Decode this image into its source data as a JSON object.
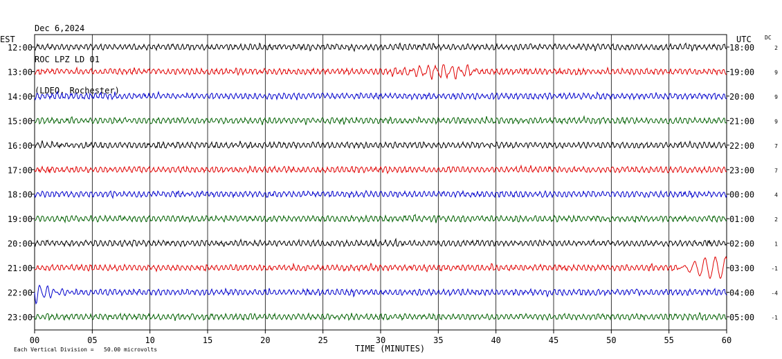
{
  "header": {
    "date": "Dec 6,2024",
    "station": "ROC LPZ LD 01",
    "location": "(LDEO, Rochester)"
  },
  "left_axis_label": "EST",
  "right_axis_label": "UTC",
  "dc_label": "DC",
  "footer_note": "Each Vertical Division =   50.00 microvolts",
  "chart_data": {
    "type": "line",
    "xlabel": "TIME (MINUTES)",
    "x_ticks": [
      "00",
      "05",
      "10",
      "15",
      "20",
      "25",
      "30",
      "35",
      "40",
      "45",
      "50",
      "55",
      "60"
    ],
    "xlim": [
      0,
      60
    ],
    "grid": true,
    "trace_colors": [
      "#000000",
      "#e00000",
      "#0000cc",
      "#006000"
    ],
    "rows": [
      {
        "est": "12:00",
        "utc": "18:00",
        "dc": "2"
      },
      {
        "est": "13:00",
        "utc": "19:00",
        "dc": "9"
      },
      {
        "est": "14:00",
        "utc": "20:00",
        "dc": "9"
      },
      {
        "est": "15:00",
        "utc": "21:00",
        "dc": "9"
      },
      {
        "est": "16:00",
        "utc": "22:00",
        "dc": "7"
      },
      {
        "est": "17:00",
        "utc": "23:00",
        "dc": "7"
      },
      {
        "est": "18:00",
        "utc": "00:00",
        "dc": "4"
      },
      {
        "est": "19:00",
        "utc": "01:00",
        "dc": "2"
      },
      {
        "est": "20:00",
        "utc": "02:00",
        "dc": "1"
      },
      {
        "est": "21:00",
        "utc": "03:00",
        "dc": "-1"
      },
      {
        "est": "22:00",
        "utc": "04:00",
        "dc": "-4"
      },
      {
        "est": "23:00",
        "utc": "05:00",
        "dc": "-1"
      }
    ]
  }
}
